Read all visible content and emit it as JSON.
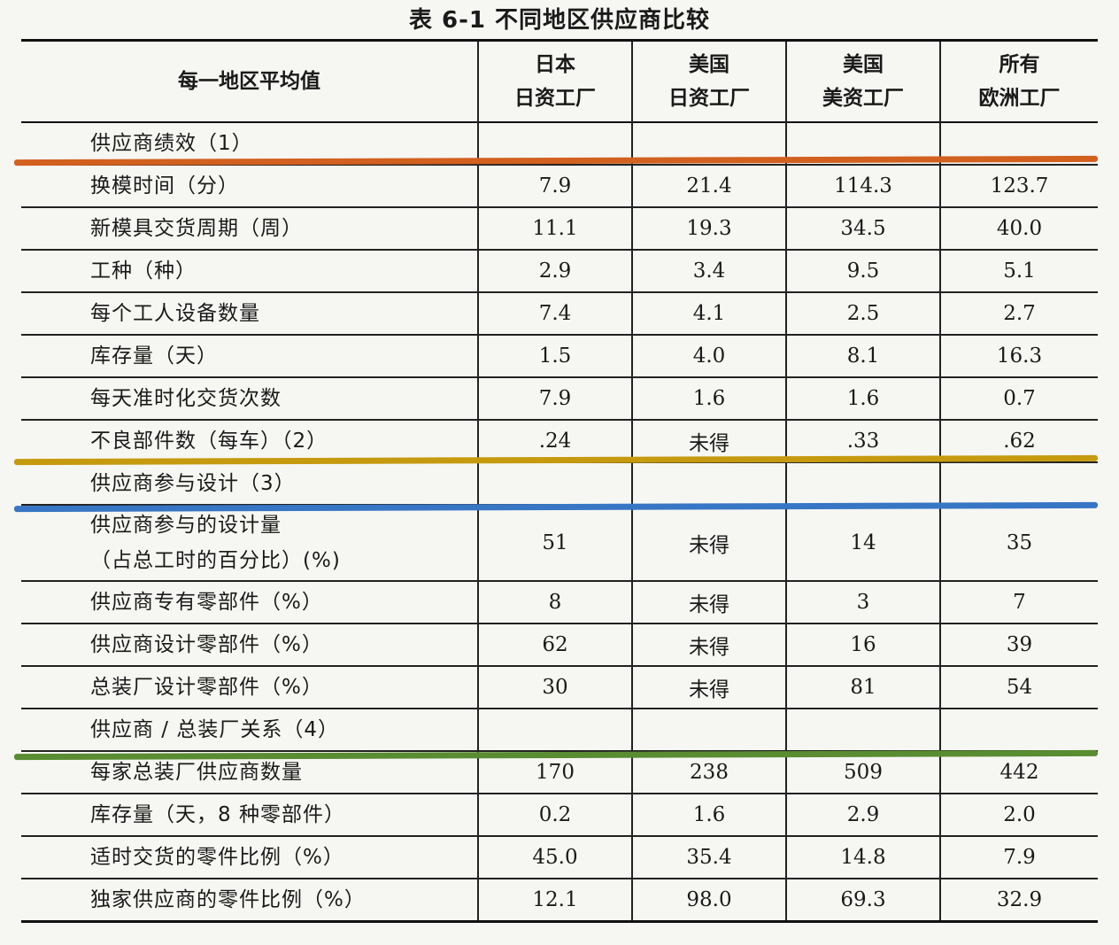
{
  "caption": "表 6-1   不同地区供应商比较",
  "header": {
    "row_label": "每一地区平均值",
    "columns": [
      [
        "日本",
        "日资工厂"
      ],
      [
        "美国",
        "日资工厂"
      ],
      [
        "美国",
        "美资工厂"
      ],
      [
        "所有",
        "欧洲工厂"
      ]
    ]
  },
  "rows": [
    {
      "label": [
        "供应商绩效（1）"
      ],
      "values": [
        "",
        "",
        "",
        ""
      ]
    },
    {
      "label": [
        "换模时间（分）"
      ],
      "values": [
        "7.9",
        "21.4",
        "114.3",
        "123.7"
      ]
    },
    {
      "label": [
        "新模具交货周期（周）"
      ],
      "values": [
        "11.1",
        "19.3",
        "34.5",
        "40.0"
      ]
    },
    {
      "label": [
        "工种（种）"
      ],
      "values": [
        "2.9",
        "3.4",
        "9.5",
        "5.1"
      ]
    },
    {
      "label": [
        "每个工人设备数量"
      ],
      "values": [
        "7.4",
        "4.1",
        "2.5",
        "2.7"
      ]
    },
    {
      "label": [
        "库存量（天）"
      ],
      "values": [
        "1.5",
        "4.0",
        "8.1",
        "16.3"
      ]
    },
    {
      "label": [
        "每天准时化交货次数"
      ],
      "values": [
        "7.9",
        "1.6",
        "1.6",
        "0.7"
      ]
    },
    {
      "label": [
        "不良部件数（每车）（2）"
      ],
      "values": [
        ".24",
        "未得",
        ".33",
        ".62"
      ]
    },
    {
      "label": [
        "供应商参与设计（3）"
      ],
      "values": [
        "",
        "",
        "",
        ""
      ]
    },
    {
      "label": [
        "供应商参与的设计量",
        "（占总工时的百分比）(%)"
      ],
      "values": [
        "51",
        "未得",
        "14",
        "35"
      ]
    },
    {
      "label": [
        "供应商专有零部件（%）"
      ],
      "values": [
        "8",
        "未得",
        "3",
        "7"
      ]
    },
    {
      "label": [
        "供应商设计零部件（%）"
      ],
      "values": [
        "62",
        "未得",
        "16",
        "39"
      ]
    },
    {
      "label": [
        "总装厂设计零部件（%）"
      ],
      "values": [
        "30",
        "未得",
        "81",
        "54"
      ]
    },
    {
      "label": [
        "供应商 / 总装厂关系（4）"
      ],
      "values": [
        "",
        "",
        "",
        ""
      ]
    },
    {
      "label": [
        "每家总装厂供应商数量"
      ],
      "values": [
        "170",
        "238",
        "509",
        "442"
      ]
    },
    {
      "label": [
        "库存量（天，8 种零部件）"
      ],
      "values": [
        "0.2",
        "1.6",
        "2.9",
        "2.0"
      ]
    },
    {
      "label": [
        "适时交货的零件比例（%）"
      ],
      "values": [
        "45.0",
        "35.4",
        "14.8",
        "7.9"
      ]
    },
    {
      "label": [
        "独家供应商的零件比例（%）"
      ],
      "values": [
        "12.1",
        "98.0",
        "69.3",
        "32.9"
      ]
    }
  ],
  "highlights": [
    {
      "name": "orange",
      "color": "#d2601f"
    },
    {
      "name": "gold",
      "color": "#c69a0e"
    },
    {
      "name": "blue",
      "color": "#3776c4"
    },
    {
      "name": "green",
      "color": "#5a8c32"
    }
  ]
}
